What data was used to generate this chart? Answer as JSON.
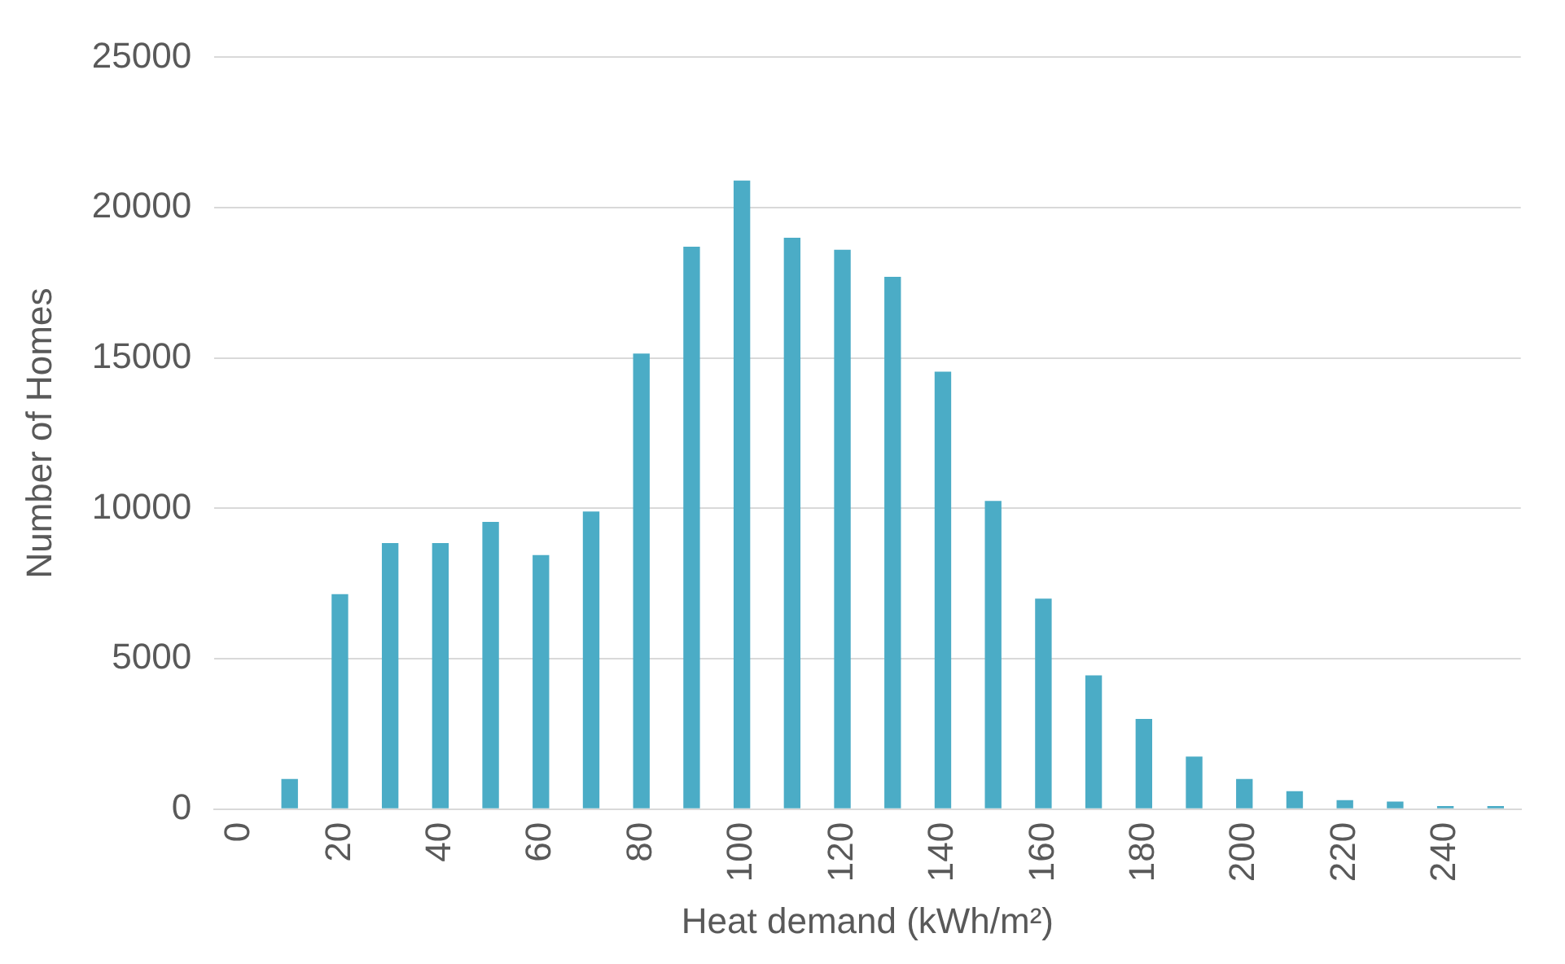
{
  "chart_data": {
    "type": "bar",
    "xlabel": "Heat demand (kWh/m²)",
    "ylabel": "Number of Homes",
    "categories": [
      "0",
      null,
      "20",
      null,
      "40",
      null,
      "60",
      null,
      "80",
      null,
      "100",
      null,
      "120",
      null,
      "140",
      null,
      "160",
      null,
      "180",
      null,
      "200",
      null,
      "220",
      null,
      "240",
      null
    ],
    "values": [
      0,
      1000,
      7150,
      8850,
      8850,
      9550,
      8450,
      9900,
      15150,
      18700,
      20900,
      19000,
      18600,
      17700,
      14550,
      10250,
      7000,
      4450,
      3000,
      1750,
      1000,
      600,
      300,
      250,
      100,
      100
    ],
    "color": "#4bacc6",
    "ylim": [
      0,
      25000
    ],
    "yticks": [
      0,
      5000,
      10000,
      15000,
      20000,
      25000
    ],
    "grid": "y",
    "legend": false
  }
}
